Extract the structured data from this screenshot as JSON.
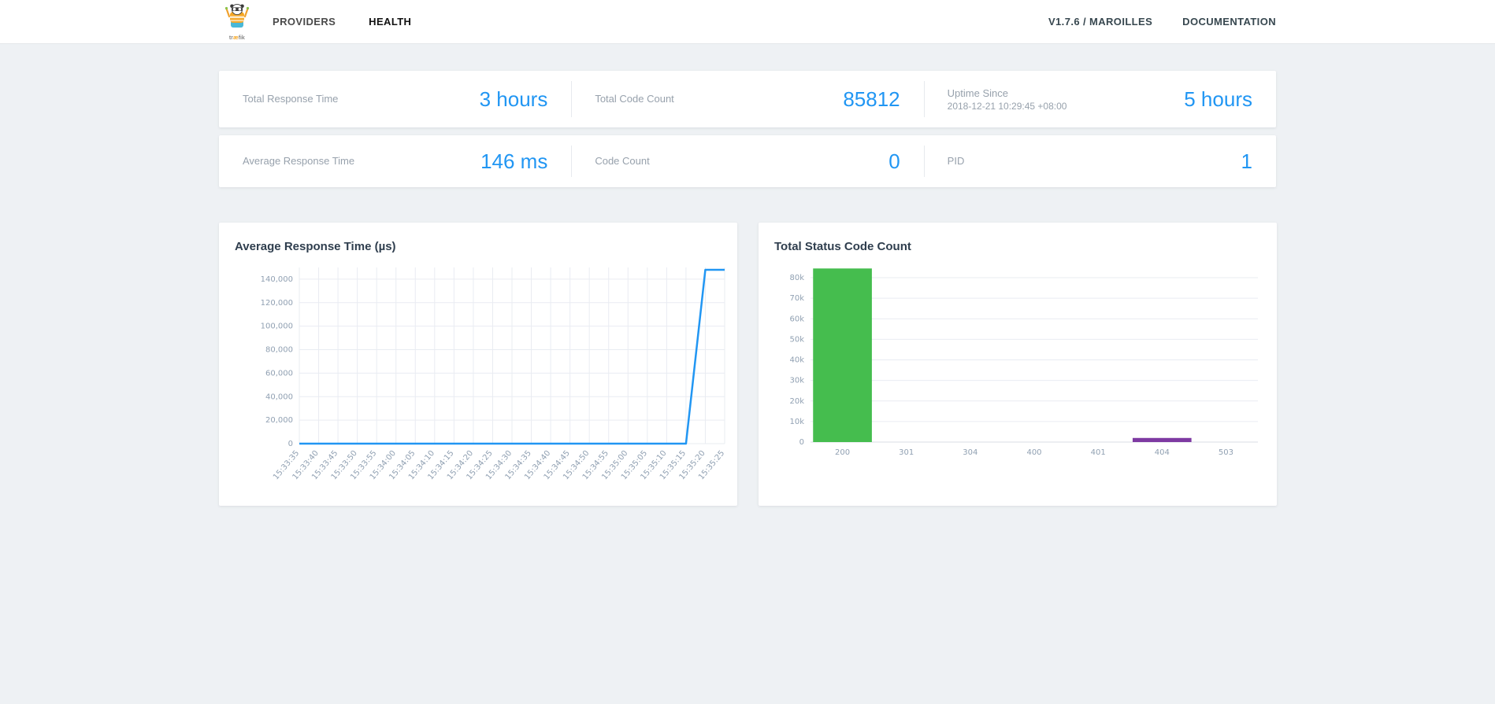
{
  "navbar": {
    "logo_text_start": "tr",
    "logo_text_ae": "æ",
    "logo_text_end": "fik",
    "items": [
      {
        "label": "PROVIDERS",
        "active": false
      },
      {
        "label": "HEALTH",
        "active": true
      }
    ],
    "version_label": "V1.7.6 / MAROILLES",
    "documentation_label": "DOCUMENTATION"
  },
  "stats": {
    "row1": [
      {
        "label": "Total Response Time",
        "value": "3 hours"
      },
      {
        "label": "Total Code Count",
        "value": "85812"
      },
      {
        "label": "Uptime Since",
        "sublabel": "2018-12-21 10:29:45 +08:00",
        "value": "5 hours"
      }
    ],
    "row2": [
      {
        "label": "Average Response Time",
        "value": "146 ms"
      },
      {
        "label": "Code Count",
        "value": "0"
      },
      {
        "label": "PID",
        "value": "1"
      }
    ]
  },
  "colors": {
    "accent_blue": "#2196f3",
    "bar_green": "#45bd4e",
    "bar_purple": "#7e3aa2",
    "grid_line": "#e9ecf2",
    "axis_line": "#d9dee4"
  },
  "chart_data": [
    {
      "type": "line",
      "title": "Average Response Time (µs)",
      "x": [
        "15:33:35",
        "15:33:40",
        "15:33:45",
        "15:33:50",
        "15:33:55",
        "15:34:00",
        "15:34:05",
        "15:34:10",
        "15:34:15",
        "15:34:20",
        "15:34:25",
        "15:34:30",
        "15:34:35",
        "15:34:40",
        "15:34:45",
        "15:34:50",
        "15:34:55",
        "15:35:00",
        "15:35:05",
        "15:35:10",
        "15:35:15",
        "15:35:20",
        "15:35:25"
      ],
      "values": [
        0,
        0,
        0,
        0,
        0,
        0,
        0,
        0,
        0,
        0,
        0,
        0,
        0,
        0,
        0,
        0,
        0,
        0,
        0,
        0,
        0,
        148000,
        148000
      ],
      "ylim": [
        0,
        150000
      ],
      "yticks": [
        0,
        20000,
        40000,
        60000,
        80000,
        100000,
        120000,
        140000
      ],
      "ytick_labels": [
        "0",
        "20,000",
        "40,000",
        "60,000",
        "80,000",
        "100,000",
        "120,000",
        "140,000"
      ],
      "line_color": "#2196f3",
      "grid": "both",
      "legend": "none"
    },
    {
      "type": "bar",
      "title": "Total Status Code Count",
      "categories": [
        "200",
        "301",
        "304",
        "400",
        "401",
        "404",
        "503"
      ],
      "values": [
        84500,
        0,
        0,
        0,
        0,
        2000,
        0
      ],
      "bar_colors": [
        "#45bd4e",
        "#2196f3",
        "#2196f3",
        "#2196f3",
        "#2196f3",
        "#7e3aa2",
        "#2196f3"
      ],
      "ylim": [
        0,
        85000
      ],
      "yticks": [
        0,
        10000,
        20000,
        30000,
        40000,
        50000,
        60000,
        70000,
        80000
      ],
      "ytick_labels": [
        "0",
        "10k",
        "20k",
        "30k",
        "40k",
        "50k",
        "60k",
        "70k",
        "80k"
      ],
      "grid": "horizontal",
      "legend": "none"
    }
  ]
}
